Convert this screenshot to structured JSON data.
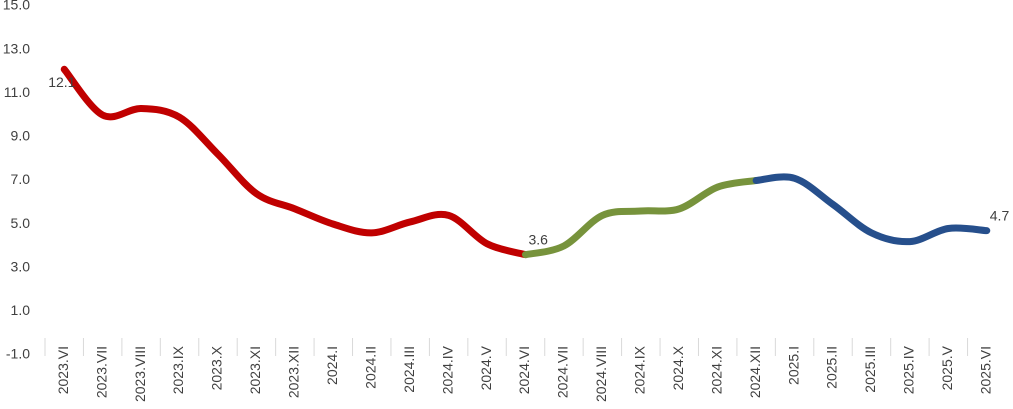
{
  "chart_data": {
    "type": "line",
    "categories": [
      "2023.VI",
      "2023.VII",
      "2023.VIII",
      "2023.IX",
      "2023.X",
      "2023.XI",
      "2023.XII",
      "2024.I",
      "2024.II",
      "2024.III",
      "2024.IV",
      "2024.V",
      "2024.VI",
      "2024.VII",
      "2024.VIII",
      "2024.IX",
      "2024.X",
      "2024.XI",
      "2024.XII",
      "2025.I",
      "2025.II",
      "2025.III",
      "2025.IV",
      "2025.V",
      "2025.VI"
    ],
    "series": [
      {
        "color": "#c00000",
        "values": [
          12.1,
          10.0,
          10.3,
          9.9,
          8.2,
          6.4,
          5.7,
          5.0,
          4.6,
          5.1,
          5.4,
          4.1,
          3.6,
          null,
          null,
          null,
          null,
          null,
          null,
          null,
          null,
          null,
          null,
          null,
          null
        ]
      },
      {
        "color": "#77933c",
        "values": [
          null,
          null,
          null,
          null,
          null,
          null,
          null,
          null,
          null,
          null,
          null,
          null,
          3.6,
          4.0,
          5.4,
          5.6,
          5.7,
          6.7,
          7.0,
          null,
          null,
          null,
          null,
          null,
          null
        ]
      },
      {
        "color": "#264f8c",
        "values": [
          null,
          null,
          null,
          null,
          null,
          null,
          null,
          null,
          null,
          null,
          null,
          null,
          null,
          null,
          null,
          null,
          null,
          null,
          7.0,
          7.1,
          5.9,
          4.6,
          4.2,
          4.8,
          4.7
        ]
      }
    ],
    "labeled_points": [
      [
        0,
        0
      ],
      [
        0,
        12
      ],
      [
        2,
        24
      ]
    ],
    "ylim": [
      -1,
      15
    ],
    "yticks": [
      {
        "value": -1,
        "label": "-1.0"
      },
      {
        "value": 1,
        "label": "1.0"
      },
      {
        "value": 3,
        "label": "3.0"
      },
      {
        "value": 5,
        "label": "5.0"
      },
      {
        "value": 7,
        "label": "7.0"
      },
      {
        "value": 9,
        "label": "9.0"
      },
      {
        "value": 11,
        "label": "11.0"
      },
      {
        "value": 13,
        "label": "13.0"
      },
      {
        "value": 15,
        "label": "15.0"
      }
    ],
    "grid": false
  }
}
